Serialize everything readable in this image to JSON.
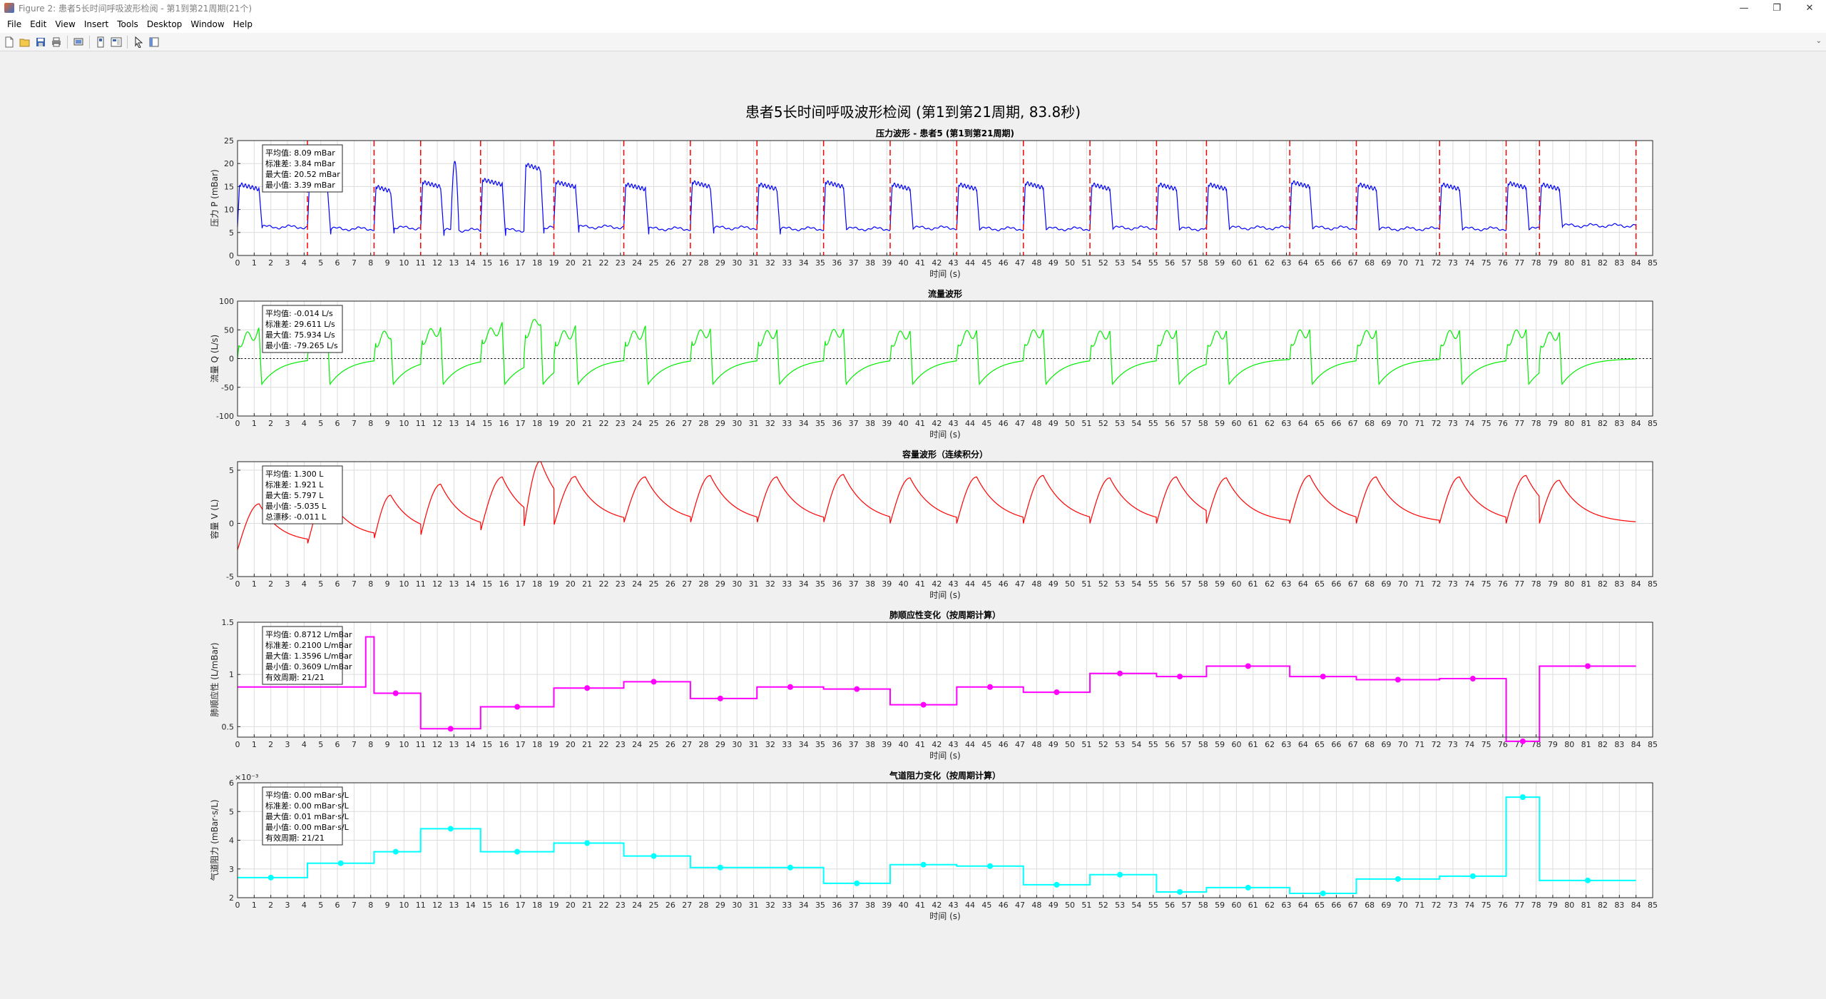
{
  "window": {
    "title": "Figure 2: 患者5长时间呼吸波形检阅 - 第1到第21周期(21个)",
    "controls": {
      "minimize": "—",
      "maximize": "❐",
      "close": "✕"
    }
  },
  "menu": [
    "File",
    "Edit",
    "View",
    "Insert",
    "Tools",
    "Desktop",
    "Window",
    "Help"
  ],
  "toolbar": {
    "icons": [
      "new-figure-icon",
      "open-file-icon",
      "save-icon",
      "print-icon",
      "print-preview-icon",
      "link-plot-icon",
      "insert-colorbar-icon",
      "pointer-icon",
      "property-editor-icon"
    ]
  },
  "figure": {
    "suptitle": "患者5长时间呼吸波形检阅 (第1到第21周期, 83.8秒)",
    "colors": {
      "pressure": "#0000ff",
      "flow": "#00ee00",
      "volume": "#ff0000",
      "compliance": "#ff00ff",
      "resistance": "#00ffff",
      "cycle_line": "#ff0000"
    }
  },
  "chart_data": [
    {
      "type": "line",
      "title": "压力波形 - 患者5 (第1到第21周期)",
      "xlabel": "时间 (s)",
      "ylabel": "压力 P (mBar)",
      "xlim": [
        0,
        85
      ],
      "ylim": [
        0,
        25
      ],
      "yticks": [
        0,
        5,
        10,
        15,
        20,
        25
      ],
      "grid": true,
      "cycle_starts": [
        4.2,
        8.2,
        11.0,
        14.6,
        19.0,
        23.2,
        27.2,
        31.2,
        35.2,
        39.2,
        43.2,
        47.2,
        51.2,
        55.2,
        58.2,
        63.2,
        67.2,
        72.2,
        76.2,
        78.2,
        84.0
      ],
      "stats": [
        "平均值: 8.09 mBar",
        "标准差: 3.84 mBar",
        "最大值: 20.52 mBar",
        "最小值: 3.39 mBar"
      ],
      "cycles": [
        {
          "start": 0.0,
          "insp": 1.3,
          "peak": 15.5,
          "base": 6.2,
          "bump": true
        },
        {
          "start": 4.2,
          "insp": 1.2,
          "peak": 16.0,
          "base": 5.8
        },
        {
          "start": 8.2,
          "insp": 1.0,
          "peak": 15.0,
          "base": 6.0
        },
        {
          "start": 11.0,
          "insp": 1.2,
          "peak": 16.0,
          "base": 5.5,
          "spike": 20.5
        },
        {
          "start": 14.6,
          "insp": 1.3,
          "peak": 16.5,
          "base": 5.5
        },
        {
          "start": 17.2,
          "insp": 1.0,
          "peak": 19.8,
          "base": 6.0
        },
        {
          "start": 19.0,
          "insp": 1.3,
          "peak": 16.0,
          "base": 6.2
        },
        {
          "start": 23.2,
          "insp": 1.3,
          "peak": 15.5,
          "base": 5.8
        },
        {
          "start": 27.2,
          "insp": 1.2,
          "peak": 16.0,
          "base": 6.0
        },
        {
          "start": 31.2,
          "insp": 1.2,
          "peak": 15.5,
          "base": 5.8
        },
        {
          "start": 35.2,
          "insp": 1.2,
          "peak": 16.0,
          "base": 5.8
        },
        {
          "start": 39.2,
          "insp": 1.2,
          "peak": 15.5,
          "base": 6.0
        },
        {
          "start": 43.2,
          "insp": 1.2,
          "peak": 15.5,
          "base": 5.8
        },
        {
          "start": 47.2,
          "insp": 1.2,
          "peak": 15.8,
          "base": 5.8
        },
        {
          "start": 51.2,
          "insp": 1.2,
          "peak": 15.5,
          "base": 6.0
        },
        {
          "start": 55.2,
          "insp": 1.2,
          "peak": 15.5,
          "base": 5.8
        },
        {
          "start": 58.2,
          "insp": 1.2,
          "peak": 15.5,
          "base": 6.0
        },
        {
          "start": 63.2,
          "insp": 1.2,
          "peak": 16.0,
          "base": 6.0
        },
        {
          "start": 67.2,
          "insp": 1.2,
          "peak": 15.5,
          "base": 5.8
        },
        {
          "start": 72.2,
          "insp": 1.2,
          "peak": 15.5,
          "base": 5.8
        },
        {
          "start": 76.2,
          "insp": 1.2,
          "peak": 15.8,
          "base": 5.8
        },
        {
          "start": 78.2,
          "insp": 1.2,
          "peak": 15.5,
          "base": 6.5
        }
      ]
    },
    {
      "type": "line",
      "title": "流量波形",
      "xlabel": "时间 (s)",
      "ylabel": "流量 Q (L/s)",
      "xlim": [
        0,
        85
      ],
      "ylim": [
        -100,
        100
      ],
      "yticks": [
        -100,
        -50,
        0,
        50,
        100
      ],
      "grid": true,
      "zero_line": true,
      "stats": [
        "平均值: -0.014 L/s",
        "标准差: 29.611 L/s",
        "最大值: 75.934 L/s",
        "最小值: -79.265 L/s"
      ]
    },
    {
      "type": "line",
      "title": "容量波形（连续积分）",
      "xlabel": "时间 (s)",
      "ylabel": "容量 V (L)",
      "xlim": [
        0,
        85
      ],
      "ylim": [
        -5,
        5.8
      ],
      "yticks": [
        -5,
        0,
        5
      ],
      "grid": true,
      "stats": [
        "平均值: 1.300 L",
        "标准差: 1.921 L",
        "最大值: 5.797 L",
        "最小值: -5.035 L",
        "总漂移: -0.011 L"
      ]
    },
    {
      "type": "line",
      "step": true,
      "title": "肺顺应性变化（按周期计算）",
      "xlabel": "时间 (s)",
      "ylabel": "肺顺应性 (L/mBar)",
      "xlim": [
        0,
        85
      ],
      "ylim": [
        0.4,
        1.5
      ],
      "yticks": [
        0.5,
        1,
        1.5
      ],
      "grid": true,
      "stats": [
        "平均值: 0.8712 L/mBar",
        "标准差: 0.2100 L/mBar",
        "最大值: 1.3596 L/mBar",
        "最小值: 0.3609 L/mBar",
        "有效周期: 21/21"
      ],
      "steps": [
        {
          "x0": 0,
          "x1": 8.2,
          "y": 0.88,
          "hi": 1.36
        },
        {
          "x0": 8.2,
          "x1": 11.0,
          "y": 0.82,
          "mid": 9.5
        },
        {
          "x0": 11.0,
          "x1": 14.6,
          "y": 0.48,
          "mid": 12.8
        },
        {
          "x0": 14.6,
          "x1": 19.0,
          "y": 0.69,
          "mid": 16.8
        },
        {
          "x0": 19.0,
          "x1": 23.2,
          "y": 0.87,
          "mid": 21.0
        },
        {
          "x0": 23.2,
          "x1": 27.2,
          "y": 0.93,
          "mid": 25.0
        },
        {
          "x0": 27.2,
          "x1": 31.2,
          "y": 0.77,
          "mid": 29.0
        },
        {
          "x0": 31.2,
          "x1": 35.2,
          "y": 0.88,
          "mid": 33.2
        },
        {
          "x0": 35.2,
          "x1": 39.2,
          "y": 0.86,
          "mid": 37.2
        },
        {
          "x0": 39.2,
          "x1": 43.2,
          "y": 0.71,
          "mid": 41.2
        },
        {
          "x0": 43.2,
          "x1": 47.2,
          "y": 0.88,
          "mid": 45.2
        },
        {
          "x0": 47.2,
          "x1": 51.2,
          "y": 0.83,
          "mid": 49.2
        },
        {
          "x0": 51.2,
          "x1": 55.2,
          "y": 1.01,
          "mid": 53.0
        },
        {
          "x0": 55.2,
          "x1": 58.2,
          "y": 0.98,
          "mid": 56.6
        },
        {
          "x0": 58.2,
          "x1": 63.2,
          "y": 1.08,
          "mid": 60.7
        },
        {
          "x0": 63.2,
          "x1": 67.2,
          "y": 0.98,
          "mid": 65.2
        },
        {
          "x0": 67.2,
          "x1": 72.2,
          "y": 0.95,
          "mid": 69.7
        },
        {
          "x0": 72.2,
          "x1": 76.2,
          "y": 0.96,
          "mid": 74.2
        },
        {
          "x0": 76.2,
          "x1": 78.2,
          "y": 0.36,
          "mid": 77.2
        },
        {
          "x0": 78.2,
          "x1": 84.0,
          "y": 1.08,
          "mid": 81.1
        }
      ]
    },
    {
      "type": "line",
      "step": true,
      "title": "气道阻力变化（按周期计算）",
      "xlabel": "时间 (s)",
      "ylabel": "气道阻力 (mBar·s/L)",
      "y_exponent": "×10⁻³",
      "xlim": [
        0,
        85
      ],
      "ylim": [
        2,
        6
      ],
      "yticks": [
        2,
        3,
        4,
        5,
        6
      ],
      "grid": true,
      "stats": [
        "平均值: 0.00 mBar·s/L",
        "标准差: 0.00 mBar·s/L",
        "最大值: 0.01 mBar·s/L",
        "最小值: 0.00 mBar·s/L",
        "有效周期: 21/21"
      ],
      "steps": [
        {
          "x0": 0,
          "x1": 4.2,
          "y": 2.7,
          "mid": 2.0
        },
        {
          "x0": 4.2,
          "x1": 8.2,
          "y": 3.2,
          "mid": 6.2
        },
        {
          "x0": 8.2,
          "x1": 11.0,
          "y": 3.6,
          "mid": 9.5
        },
        {
          "x0": 11.0,
          "x1": 14.6,
          "y": 4.4,
          "mid": 12.8
        },
        {
          "x0": 14.6,
          "x1": 19.0,
          "y": 3.6,
          "mid": 16.8
        },
        {
          "x0": 19.0,
          "x1": 23.2,
          "y": 3.9,
          "mid": 21.0
        },
        {
          "x0": 23.2,
          "x1": 27.2,
          "y": 3.45,
          "mid": 25.0
        },
        {
          "x0": 27.2,
          "x1": 31.2,
          "y": 3.05,
          "mid": 29.0
        },
        {
          "x0": 31.2,
          "x1": 35.2,
          "y": 3.05,
          "mid": 33.2
        },
        {
          "x0": 35.2,
          "x1": 39.2,
          "y": 2.5,
          "mid": 37.2
        },
        {
          "x0": 39.2,
          "x1": 43.2,
          "y": 3.15,
          "mid": 41.2
        },
        {
          "x0": 43.2,
          "x1": 47.2,
          "y": 3.1,
          "mid": 45.2
        },
        {
          "x0": 47.2,
          "x1": 51.2,
          "y": 2.45,
          "mid": 49.2
        },
        {
          "x0": 51.2,
          "x1": 55.2,
          "y": 2.8,
          "mid": 53.0
        },
        {
          "x0": 55.2,
          "x1": 58.2,
          "y": 2.2,
          "mid": 56.6
        },
        {
          "x0": 58.2,
          "x1": 63.2,
          "y": 2.35,
          "mid": 60.7
        },
        {
          "x0": 63.2,
          "x1": 67.2,
          "y": 2.15,
          "mid": 65.2
        },
        {
          "x0": 67.2,
          "x1": 72.2,
          "y": 2.65,
          "mid": 69.7
        },
        {
          "x0": 72.2,
          "x1": 76.2,
          "y": 2.75,
          "mid": 74.2
        },
        {
          "x0": 76.2,
          "x1": 78.2,
          "y": 5.5,
          "mid": 77.2
        },
        {
          "x0": 78.2,
          "x1": 84.0,
          "y": 2.6,
          "mid": 81.1
        }
      ]
    }
  ]
}
